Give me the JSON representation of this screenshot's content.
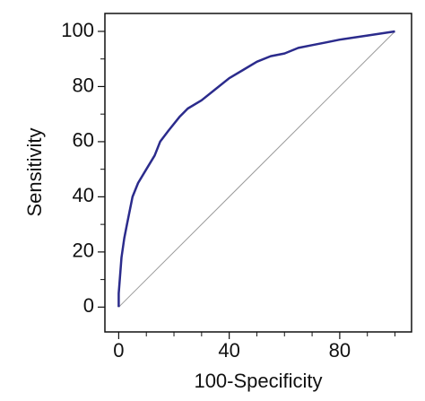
{
  "chart_data": {
    "type": "line",
    "x_label": "100-Specificity",
    "y_label": "Sensitivity",
    "xlim": [
      -5,
      106
    ],
    "ylim": [
      -9,
      106.5
    ],
    "xticks": [
      0,
      40,
      80
    ],
    "yticks": [
      0,
      20,
      40,
      60,
      80,
      100
    ],
    "xminorticks": [
      10,
      20,
      30,
      50,
      60,
      70,
      90,
      100
    ],
    "yminorticks": [
      10,
      30,
      50,
      70,
      90
    ],
    "reference": {
      "color": "#9a9a9a",
      "x": [
        0,
        100
      ],
      "values": [
        0,
        100
      ]
    },
    "series": [
      {
        "color": "#2b2b8c",
        "x": [
          0,
          0,
          1,
          2,
          3,
          4,
          5,
          7,
          10,
          13,
          15,
          18,
          22,
          25,
          30,
          35,
          40,
          45,
          50,
          55,
          60,
          65,
          70,
          75,
          80,
          90,
          100
        ],
        "values": [
          0,
          5,
          18,
          25,
          30,
          35,
          40,
          45,
          50,
          55,
          60,
          64,
          69,
          72,
          75,
          79,
          83,
          86,
          89,
          91,
          92,
          94,
          95,
          96,
          97,
          98.5,
          100
        ]
      }
    ]
  }
}
